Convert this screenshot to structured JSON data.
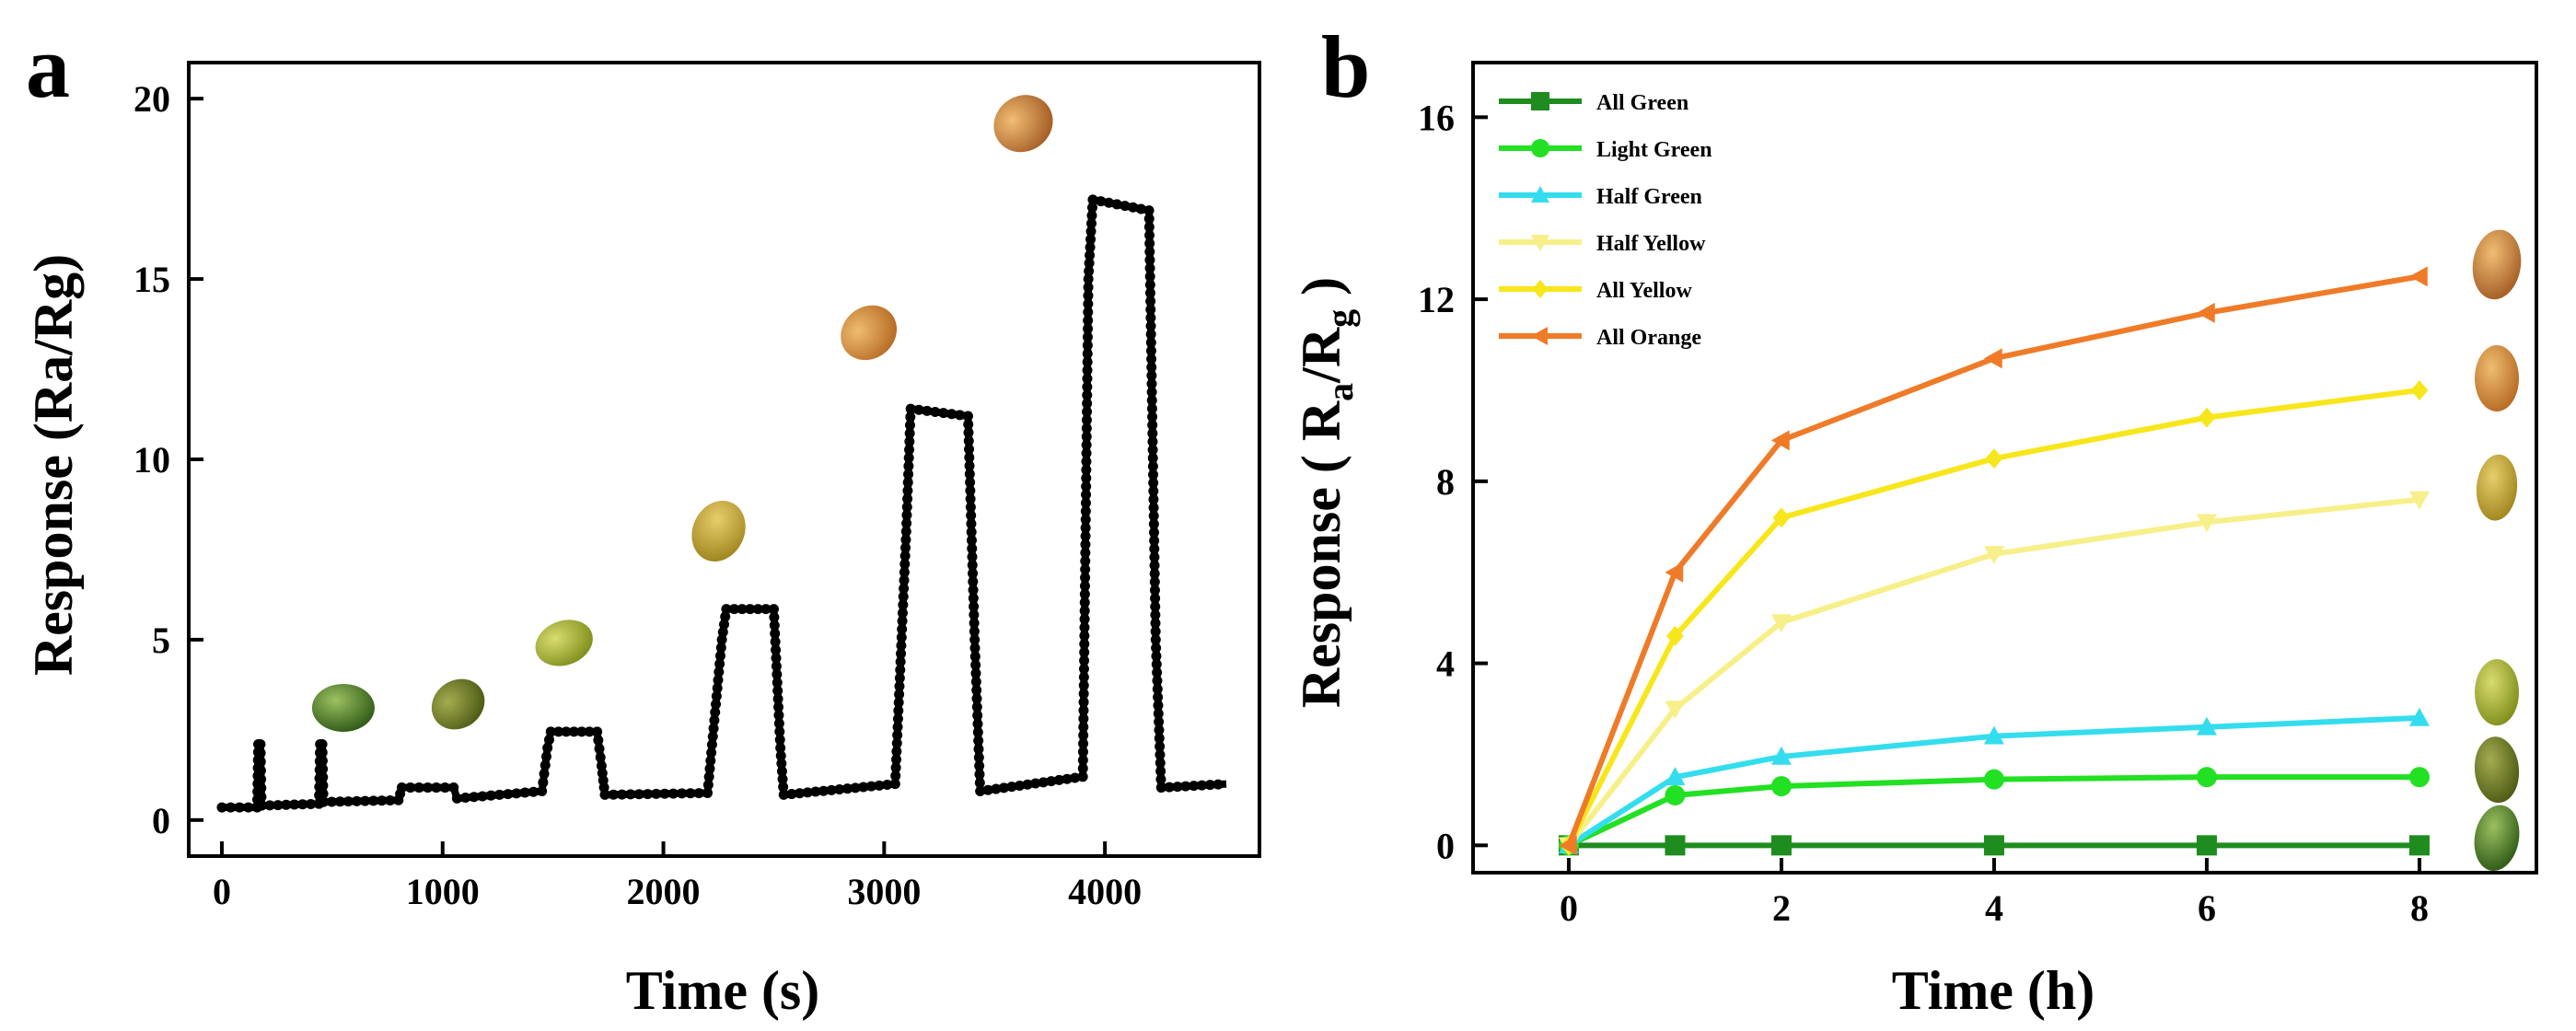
{
  "chart_data": [
    {
      "panel": "a",
      "type": "line",
      "xlabel": "Time (s)",
      "ylabel": "Response (Ra/Rg)",
      "xlim": [
        -150,
        4700
      ],
      "ylim": [
        -1,
        21
      ],
      "xticks": [
        0,
        1000,
        2000,
        3000,
        4000
      ],
      "yticks": [
        0,
        5,
        10,
        15,
        20
      ],
      "series": [
        {
          "name": "Response",
          "color": "#000000",
          "marker": "circle",
          "x": [
            0,
            160,
            165,
            175,
            180,
            440,
            445,
            455,
            460,
            800,
            815,
            1050,
            1065,
            1450,
            1475,
            1490,
            1700,
            1720,
            1735,
            2200,
            2265,
            2285,
            2500,
            2530,
            2545,
            3050,
            3100,
            3120,
            3380,
            3410,
            3435,
            3900,
            3925,
            3945,
            4200,
            4230,
            4255,
            4550
          ],
          "y": [
            0.35,
            0.35,
            2.1,
            2.1,
            0.4,
            0.45,
            2.1,
            2.1,
            0.5,
            0.55,
            0.9,
            0.9,
            0.6,
            0.8,
            2.0,
            2.45,
            2.45,
            1.5,
            0.7,
            0.75,
            5.0,
            5.85,
            5.85,
            2.0,
            0.7,
            1.0,
            8.0,
            11.4,
            11.2,
            5.0,
            0.8,
            1.2,
            15.0,
            17.2,
            16.9,
            5.0,
            0.9,
            1.0
          ]
        }
      ],
      "annotations": [
        {
          "label": "all-green-potato",
          "x": 300,
          "y": 2.6
        },
        {
          "label": "light-green-potato",
          "x": 820,
          "y": 2.7
        },
        {
          "label": "half-green-potato",
          "x": 1300,
          "y": 4.4
        },
        {
          "label": "half-yellow-potato",
          "x": 2000,
          "y": 7.5
        },
        {
          "label": "all-yellow-potato",
          "x": 2680,
          "y": 13.0
        },
        {
          "label": "all-orange-potato",
          "x": 3380,
          "y": 18.8
        }
      ]
    },
    {
      "panel": "b",
      "type": "line",
      "xlabel": "Time (h)",
      "ylabel_prefix": "Response ( R",
      "ylabel_sub1": "a",
      "ylabel_mid": "/R",
      "ylabel_sub2": "g",
      "ylabel_suffix": " )",
      "xlim": [
        -0.9,
        9.1
      ],
      "ylim": [
        -0.6,
        17.2
      ],
      "xticks": [
        0,
        2,
        4,
        6,
        8
      ],
      "yticks": [
        0,
        4,
        8,
        12,
        16
      ],
      "legend_position": "top-left",
      "x": [
        0,
        1,
        2,
        4,
        6,
        8
      ],
      "series": [
        {
          "name": "All Green",
          "color": "#1e8c1e",
          "marker": "square",
          "values": [
            0,
            0,
            0,
            0,
            0,
            0
          ]
        },
        {
          "name": "Light Green",
          "color": "#22e022",
          "marker": "circle",
          "values": [
            0,
            1.1,
            1.3,
            1.45,
            1.5,
            1.5
          ]
        },
        {
          "name": "Half Green",
          "color": "#33ddee",
          "marker": "triangle-up",
          "values": [
            0,
            1.5,
            1.95,
            2.4,
            2.6,
            2.8
          ]
        },
        {
          "name": "Half Yellow",
          "color": "#f7f08a",
          "marker": "triangle-down",
          "values": [
            0,
            3.0,
            4.9,
            6.4,
            7.1,
            7.6
          ]
        },
        {
          "name": "All Yellow",
          "color": "#f8e61c",
          "marker": "diamond",
          "values": [
            0,
            4.6,
            7.2,
            8.5,
            9.4,
            10.0
          ]
        },
        {
          "name": "All Orange",
          "color": "#ef7b28",
          "marker": "triangle-left",
          "values": [
            0,
            6.0,
            8.9,
            10.7,
            11.7,
            12.5
          ]
        }
      ],
      "annotations": [
        {
          "label": "all-orange-potato",
          "y": 12.6
        },
        {
          "label": "all-yellow-potato",
          "y": 10.1
        },
        {
          "label": "half-yellow-potato",
          "y": 7.7
        },
        {
          "label": "half-green-potato",
          "y": 3.2
        },
        {
          "label": "light-green-potato",
          "y": 1.5
        },
        {
          "label": "all-green-potato",
          "y": 0.0
        }
      ]
    }
  ],
  "panel_labels": {
    "a": "a",
    "b": "b"
  },
  "potato_colors": {
    "all-green-potato": [
      "#2f5a16",
      "#9cc061"
    ],
    "light-green-potato": [
      "#4c5a14",
      "#a5ac50"
    ],
    "half-green-potato": [
      "#7f8e1a",
      "#d9dc70"
    ],
    "half-yellow-potato": [
      "#a0861e",
      "#e8cd6c"
    ],
    "all-yellow-potato": [
      "#b76a23",
      "#eebd70"
    ],
    "all-orange-potato": [
      "#a45d25",
      "#f1bd74"
    ]
  }
}
